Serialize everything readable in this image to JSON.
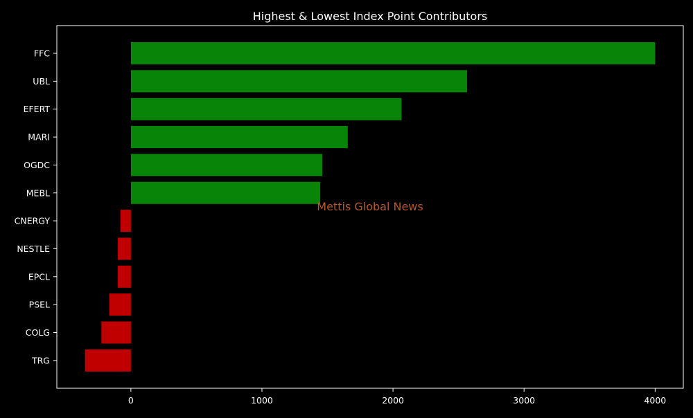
{
  "chart_data": {
    "type": "bar",
    "orientation": "horizontal",
    "title": "Highest & Lowest Index Point Contributors",
    "watermark": "Mettis Global News",
    "xlabel": "",
    "ylabel": "",
    "categories": [
      "FFC",
      "UBL",
      "EFERT",
      "MARI",
      "OGDC",
      "MEBL",
      "CNERGY",
      "NESTLE",
      "EPCL",
      "PSEL",
      "COLG",
      "TRG"
    ],
    "values": [
      4000,
      2565,
      2065,
      1655,
      1460,
      1445,
      -80,
      -100,
      -100,
      -165,
      -225,
      -350
    ],
    "xlim": [
      -565,
      4215
    ],
    "xticks": [
      0,
      1000,
      2000,
      3000,
      4000
    ],
    "grid": false,
    "legend": "none",
    "colors": {
      "positive": "#088408",
      "negative": "#c00000",
      "background": "#000000",
      "text": "#ffffff",
      "watermark": "#b5582c"
    }
  }
}
